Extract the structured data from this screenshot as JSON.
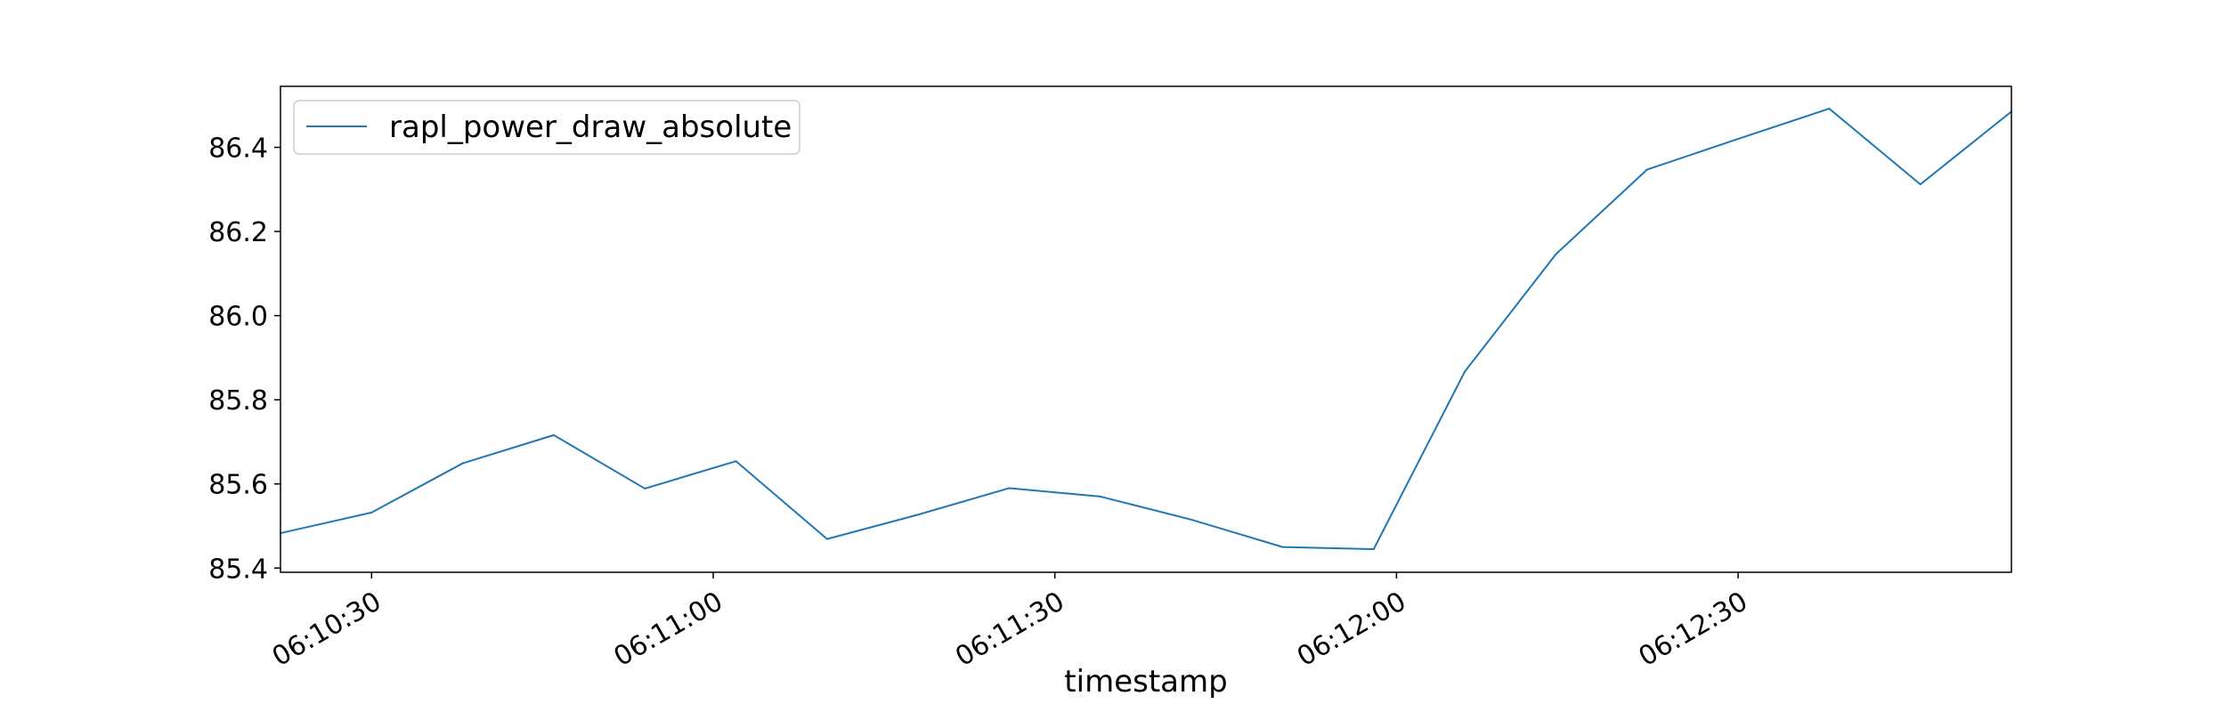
{
  "chart_data": {
    "type": "line",
    "title": "",
    "xlabel": "timestamp",
    "ylabel": "",
    "x_axis_kind": "time",
    "xlim": [
      "06:10:22",
      "06:12:54"
    ],
    "ylim": [
      85.39,
      86.545
    ],
    "x_ticks": [
      "06:10:30",
      "06:11:00",
      "06:11:30",
      "06:12:00",
      "06:12:30"
    ],
    "y_ticks": [
      85.4,
      85.6,
      85.8,
      86.0,
      86.2,
      86.4
    ],
    "y_tick_labels": [
      "85.4",
      "85.6",
      "85.8",
      "86.0",
      "86.2",
      "86.4"
    ],
    "grid": false,
    "legend_position": "top-left",
    "series": [
      {
        "name": "rapl_power_draw_absolute",
        "color": "#1f77b4",
        "x": [
          "06:10:22",
          "06:10:30",
          "06:10:38",
          "06:10:46",
          "06:10:54",
          "06:11:02",
          "06:11:10",
          "06:11:18",
          "06:11:26",
          "06:11:34",
          "06:11:42",
          "06:11:50",
          "06:11:58",
          "06:12:06",
          "06:12:14",
          "06:12:22",
          "06:12:30",
          "06:12:38",
          "06:12:46",
          "06:12:54"
        ],
        "values": [
          85.483,
          85.532,
          85.649,
          85.716,
          85.589,
          85.654,
          85.469,
          85.527,
          85.59,
          85.57,
          85.515,
          85.45,
          85.445,
          85.867,
          86.146,
          86.347,
          86.42,
          86.492,
          86.312,
          86.485
        ]
      }
    ]
  }
}
